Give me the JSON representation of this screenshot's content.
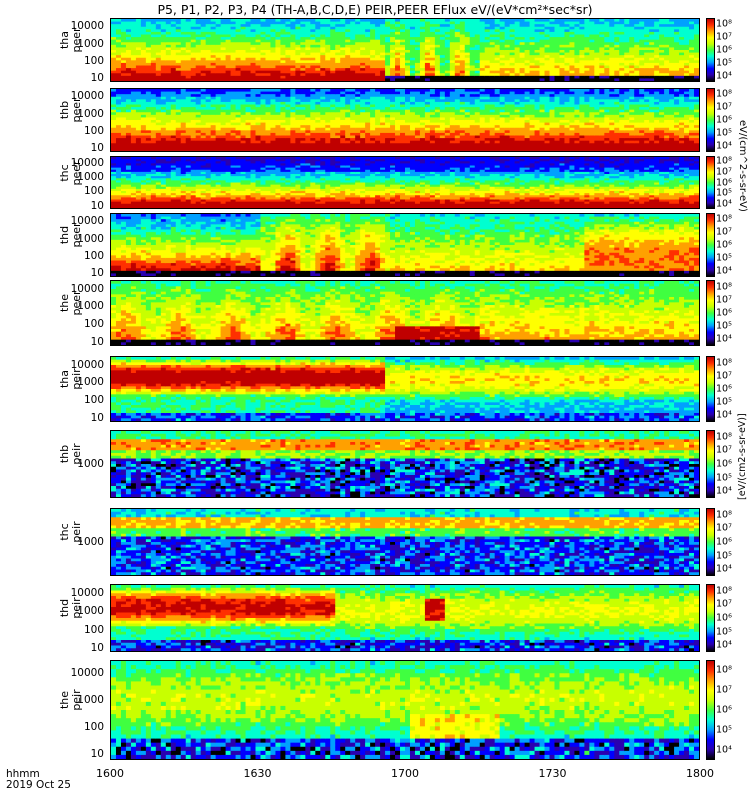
{
  "title": "P5, P1, P2, P3, P4 (TH-A,B,C,D,E) PEIR,PEER EFlux eV/(eV*cm²*sec*sr)",
  "colorbar_unit": "eV/(cm^2-s-sr-eV)",
  "colorbar_unit_bottom": "[eV/(cm2-s-sr-eV)]",
  "time_label": [
    "hhmm",
    "2019 Oct 25"
  ],
  "chart_data": {
    "type": "heatmap",
    "x_axis": {
      "range": [
        "16:00",
        "18:00"
      ],
      "ticks": [
        "1600",
        "1630",
        "1700",
        "1730",
        "1800"
      ]
    },
    "colorscale": {
      "scale": "log",
      "colors": [
        "#000000",
        "#2a00b0",
        "#0000ff",
        "#00a0ff",
        "#00ffd0",
        "#40ff40",
        "#c8ff00",
        "#ffff00",
        "#ffa000",
        "#ff3000",
        "#c00000"
      ],
      "ticks_electron": [
        "10⁴",
        "10⁵",
        "10⁶",
        "10⁷",
        "10⁸"
      ],
      "ticks_ion": [
        "10⁴",
        "10⁵",
        "10⁶",
        "10⁷",
        "10⁸"
      ]
    },
    "panels": [
      {
        "probe": "tha",
        "species": "peer",
        "label": [
          "tha",
          "peer"
        ],
        "yticks": [
          "10",
          "100",
          "1000",
          "10000"
        ],
        "scale": "log",
        "cticks": [
          "10⁴",
          "10⁵",
          "10⁶",
          "10⁷",
          "10⁸"
        ]
      },
      {
        "probe": "thb",
        "species": "peer",
        "label": [
          "thb",
          "peer"
        ],
        "yticks": [
          "10",
          "100",
          "1000",
          "10000"
        ],
        "scale": "log",
        "cticks": [
          "10⁴",
          "10⁵",
          "10⁶",
          "10⁷",
          "10⁸"
        ]
      },
      {
        "probe": "thc",
        "species": "peer",
        "label": [
          "thc",
          "peer"
        ],
        "yticks": [
          "10",
          "100",
          "1000",
          "10000"
        ],
        "scale": "log",
        "cticks": [
          "10⁴",
          "10⁵",
          "10⁶",
          "10⁷",
          "10⁸"
        ]
      },
      {
        "probe": "thd",
        "species": "peer",
        "label": [
          "thd",
          "peer"
        ],
        "yticks": [
          "10",
          "100",
          "1000",
          "10000"
        ],
        "scale": "log",
        "cticks": [
          "10⁴",
          "10⁵",
          "10⁶",
          "10⁷",
          "10⁸"
        ]
      },
      {
        "probe": "the",
        "species": "peer",
        "label": [
          "the",
          "peer"
        ],
        "yticks": [
          "10",
          "100",
          "1000",
          "10000"
        ],
        "scale": "log",
        "cticks": [
          "10⁴",
          "10⁵",
          "10⁶",
          "10⁷",
          "10⁸"
        ]
      },
      {
        "probe": "tha",
        "species": "peir",
        "label": [
          "tha",
          "peir"
        ],
        "yticks": [
          "10",
          "100",
          "1000",
          "10000"
        ],
        "scale": "log",
        "cticks": [
          "10⁴",
          "10⁵",
          "10⁶",
          "10⁷",
          "10⁸"
        ]
      },
      {
        "probe": "thb",
        "species": "peir",
        "label": [
          "thb",
          "peir"
        ],
        "yticks": [
          "1000"
        ],
        "scale": "log",
        "cticks": [
          "10⁴",
          "10⁵",
          "10⁶",
          "10⁷",
          "10⁸"
        ]
      },
      {
        "probe": "thc",
        "species": "peir",
        "label": [
          "thc",
          "peir"
        ],
        "yticks": [
          "1000"
        ],
        "scale": "log",
        "cticks": [
          "10⁴",
          "10⁵",
          "10⁶",
          "10⁷",
          "10⁸"
        ]
      },
      {
        "probe": "thd",
        "species": "peir",
        "label": [
          "thd",
          "peir"
        ],
        "yticks": [
          "10",
          "100",
          "1000",
          "10000"
        ],
        "scale": "log",
        "cticks": [
          "10⁴",
          "10⁵",
          "10⁶",
          "10⁷",
          "10⁸"
        ]
      },
      {
        "probe": "the",
        "species": "peir",
        "label": [
          "the",
          "peir"
        ],
        "yticks": [
          "10",
          "100",
          "1000",
          "10000"
        ],
        "scale": "log",
        "cticks": [
          "10⁴",
          "10⁵",
          "10⁶",
          "10⁷",
          "10⁸"
        ]
      }
    ]
  }
}
